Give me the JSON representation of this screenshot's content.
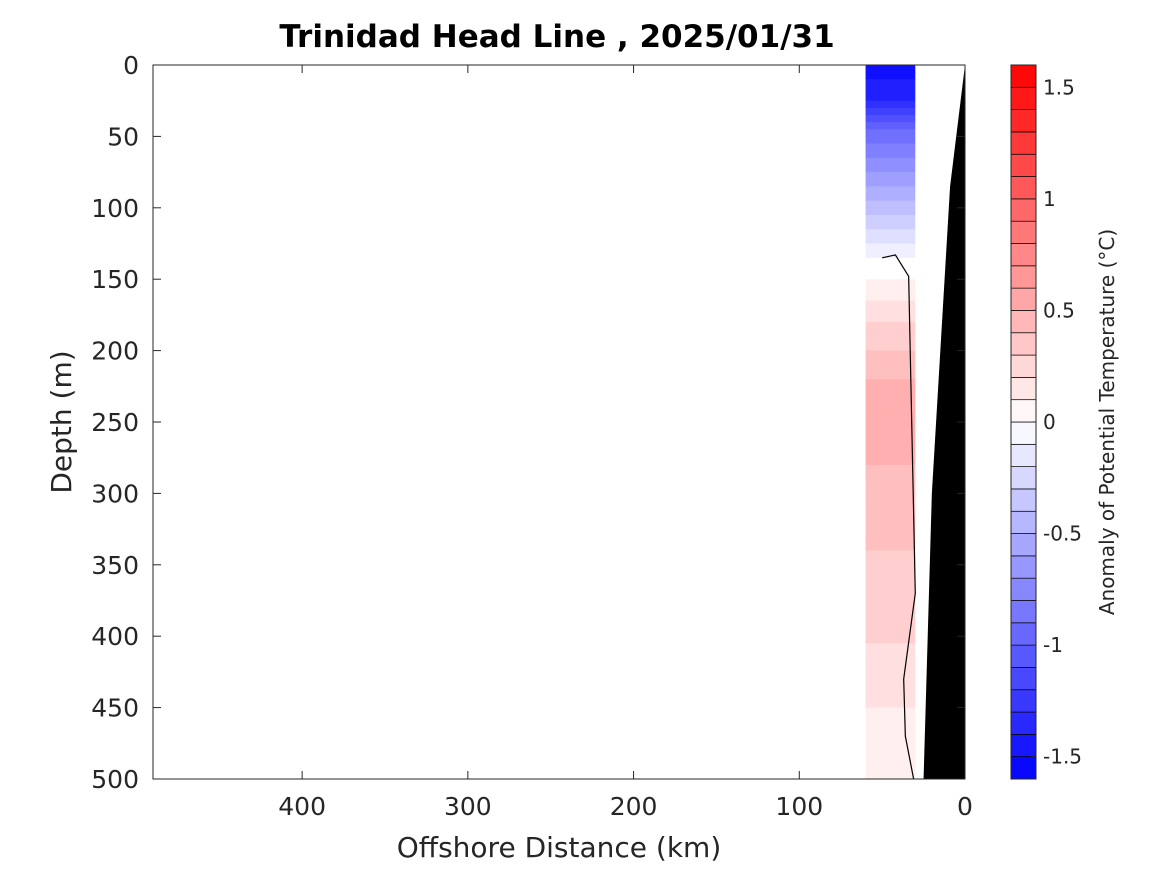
{
  "chart_data": {
    "type": "heatmap",
    "title": "Trinidad Head Line , 2025/01/31",
    "xlabel": "Offshore Distance (km)",
    "ylabel": "Depth (m)",
    "xlim": [
      490,
      0
    ],
    "ylim": [
      0,
      500
    ],
    "x_reversed": true,
    "y_reversed": true,
    "x_ticks": [
      400,
      300,
      200,
      100,
      0
    ],
    "y_ticks": [
      0,
      50,
      100,
      150,
      200,
      250,
      300,
      350,
      400,
      450,
      500
    ],
    "colorbar": {
      "label": "Anomaly of Potential Temperature (°C)",
      "range": [
        -1.6,
        1.6
      ],
      "step": 0.1,
      "ticks": [
        1.5,
        1,
        0.5,
        0,
        -0.5,
        -1,
        -1.5
      ],
      "colormap": "blue-white-red",
      "min_color": "#0000ff",
      "max_color": "#ff0000"
    },
    "data_region_x": [
      60,
      30
    ],
    "anomaly_profile": [
      {
        "depth": 0,
        "value": -1.5
      },
      {
        "depth": 20,
        "value": -1.4
      },
      {
        "depth": 50,
        "value": -0.9
      },
      {
        "depth": 80,
        "value": -0.6
      },
      {
        "depth": 110,
        "value": -0.3
      },
      {
        "depth": 140,
        "value": 0.0
      },
      {
        "depth": 180,
        "value": 0.25
      },
      {
        "depth": 240,
        "value": 0.55
      },
      {
        "depth": 300,
        "value": 0.4
      },
      {
        "depth": 380,
        "value": 0.3
      },
      {
        "depth": 450,
        "value": 0.15
      },
      {
        "depth": 500,
        "value": 0.1
      }
    ],
    "bathymetry": [
      {
        "x": 0,
        "depth": 0
      },
      {
        "x": 9,
        "depth": 85
      },
      {
        "x": 20,
        "depth": 300
      },
      {
        "x": 25,
        "depth": 500
      }
    ],
    "zero_contour": [
      {
        "x": 50,
        "depth": 135
      },
      {
        "x": 42,
        "depth": 133
      },
      {
        "x": 34,
        "depth": 148
      },
      {
        "x": 30,
        "depth": 370
      },
      {
        "x": 37,
        "depth": 430
      },
      {
        "x": 36,
        "depth": 470
      },
      {
        "x": 31,
        "depth": 500
      }
    ]
  }
}
